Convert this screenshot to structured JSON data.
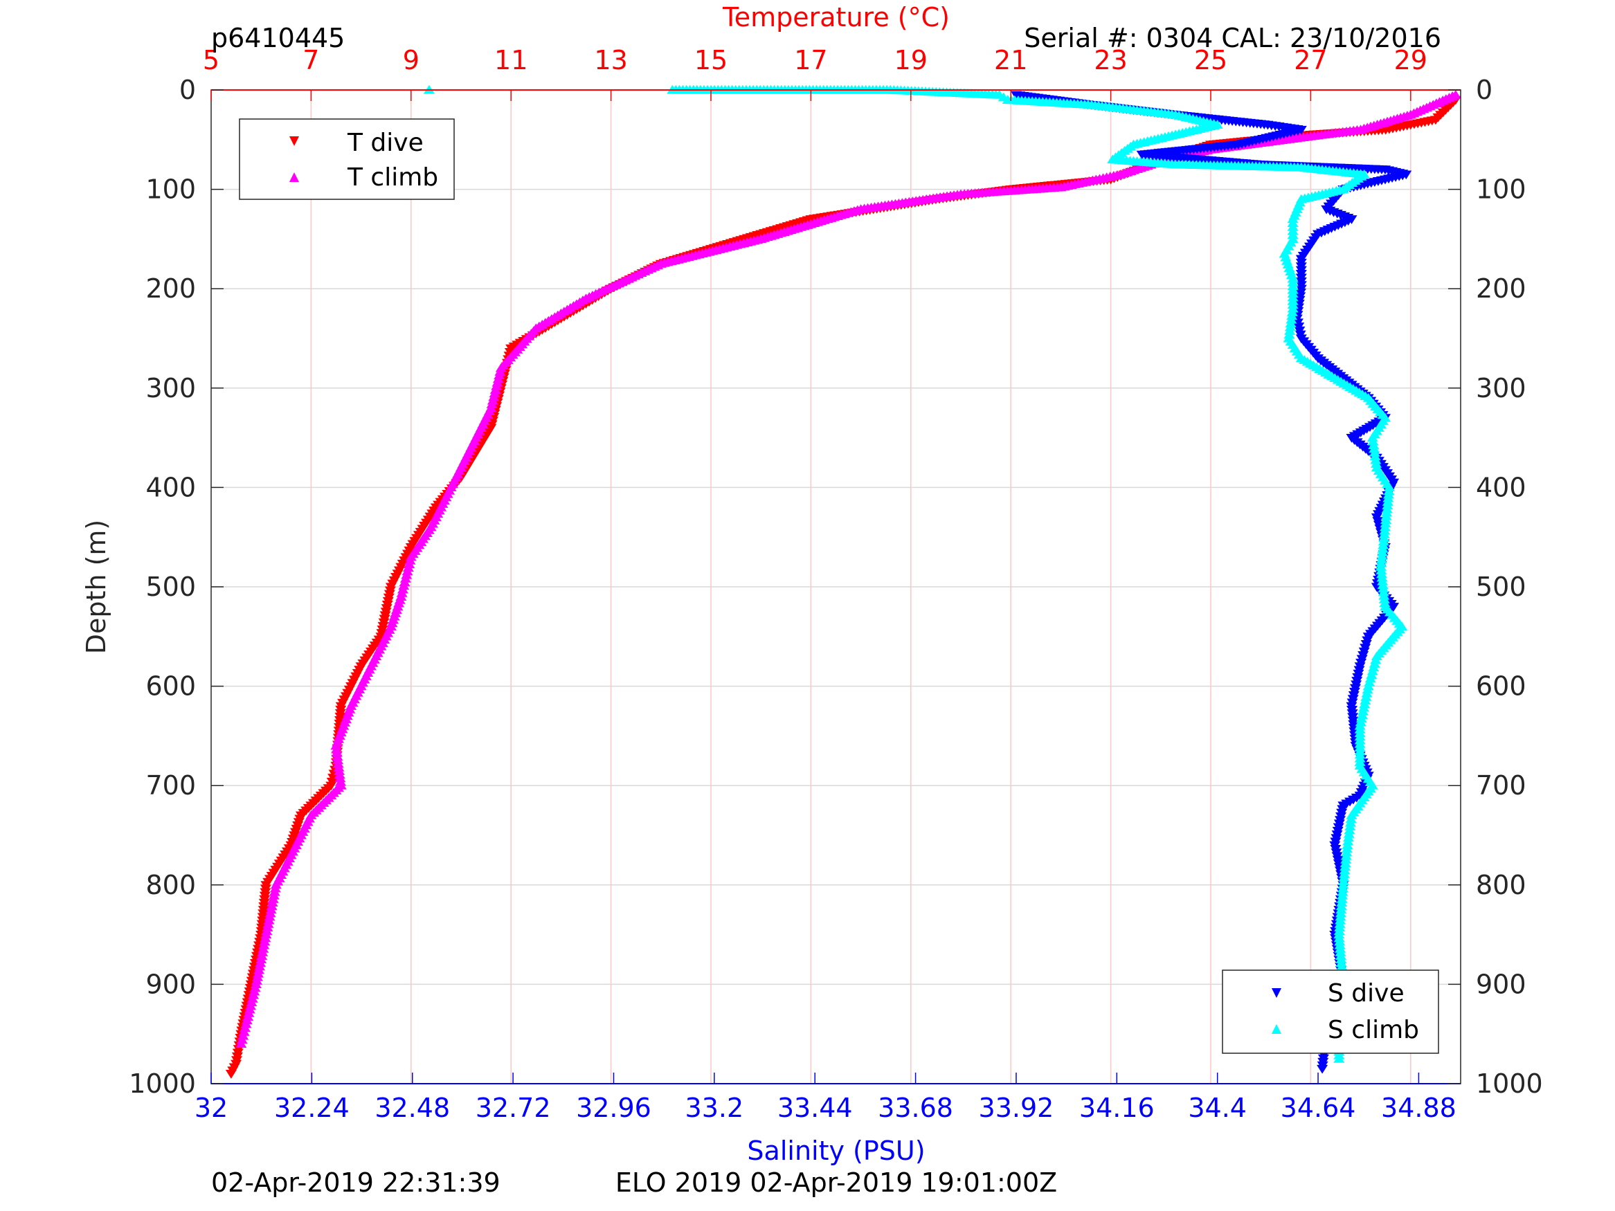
{
  "header": {
    "profile_id": "p6410445",
    "serial_info": "Serial #: 0304  CAL: 23/10/2016"
  },
  "footer": {
    "left_timestamp": "02-Apr-2019 22:31:39",
    "center_info": "ELO 2019 02-Apr-2019 19:01:00Z"
  },
  "colors": {
    "temperature_axis": "#ff0000",
    "salinity_axis": "#0000ff",
    "t_dive": "#ff0000",
    "t_climb": "#ff00ff",
    "s_dive": "#0000ff",
    "s_climb": "#00ffff",
    "grid": "#d9d9d9",
    "temp_grid": "#ffc6c6"
  },
  "chart_data": {
    "type": "scatter",
    "ylabel": "Depth (m)",
    "top_xlabel": "Temperature (°C)",
    "bottom_xlabel": "Salinity (PSU)",
    "ylim": [
      0,
      1000
    ],
    "y_reversed": true,
    "y_ticks": [
      "0",
      "100",
      "200",
      "300",
      "400",
      "500",
      "600",
      "700",
      "800",
      "900",
      "1000"
    ],
    "temperature_axis": {
      "lim": [
        5,
        30
      ],
      "ticks": [
        "5",
        "7",
        "9",
        "11",
        "13",
        "15",
        "17",
        "19",
        "21",
        "23",
        "25",
        "27",
        "29"
      ]
    },
    "salinity_axis": {
      "lim": [
        32,
        34.98
      ],
      "ticks": [
        "32",
        "32.24",
        "32.48",
        "32.72",
        "32.96",
        "33.2",
        "33.44",
        "33.68",
        "33.92",
        "34.16",
        "34.4",
        "34.64",
        "34.88"
      ]
    },
    "grid": true,
    "legend_top_left": [
      "T dive",
      "T climb"
    ],
    "legend_bottom_right": [
      "S dive",
      "S climb"
    ],
    "series": [
      {
        "name": "T dive",
        "axis": "temperature",
        "marker": "triangle-down",
        "points": [
          [
            29.9,
            10
          ],
          [
            29.5,
            30
          ],
          [
            28.5,
            40
          ],
          [
            27,
            45
          ],
          [
            25,
            55
          ],
          [
            23.8,
            75
          ],
          [
            23,
            90
          ],
          [
            21,
            100
          ],
          [
            19.5,
            110
          ],
          [
            17,
            130
          ],
          [
            15,
            160
          ],
          [
            14,
            175
          ],
          [
            13,
            200
          ],
          [
            12,
            230
          ],
          [
            11,
            260
          ],
          [
            10.8,
            300
          ],
          [
            10.6,
            340
          ],
          [
            10,
            390
          ],
          [
            9.5,
            420
          ],
          [
            9,
            460
          ],
          [
            8.6,
            500
          ],
          [
            8.4,
            550
          ],
          [
            8,
            580
          ],
          [
            7.6,
            620
          ],
          [
            7.5,
            680
          ],
          [
            7.4,
            700
          ],
          [
            6.8,
            730
          ],
          [
            6.6,
            760
          ],
          [
            6.1,
            800
          ],
          [
            6,
            850
          ],
          [
            5.8,
            900
          ],
          [
            5.6,
            950
          ],
          [
            5.5,
            980
          ],
          [
            5.4,
            990
          ]
        ]
      },
      {
        "name": "T climb",
        "axis": "temperature",
        "marker": "triangle-up",
        "points": [
          [
            29.9,
            5
          ],
          [
            29,
            25
          ],
          [
            28,
            40
          ],
          [
            26.5,
            50
          ],
          [
            25,
            60
          ],
          [
            24,
            72
          ],
          [
            23.2,
            85
          ],
          [
            22,
            98
          ],
          [
            20,
            105
          ],
          [
            18,
            120
          ],
          [
            16,
            150
          ],
          [
            14,
            175
          ],
          [
            12.5,
            210
          ],
          [
            11.5,
            240
          ],
          [
            10.8,
            280
          ],
          [
            10.6,
            320
          ],
          [
            10.2,
            360
          ],
          [
            9.8,
            400
          ],
          [
            9.4,
            440
          ],
          [
            9,
            470
          ],
          [
            8.8,
            510
          ],
          [
            8.6,
            540
          ],
          [
            8.2,
            580
          ],
          [
            7.8,
            620
          ],
          [
            7.5,
            660
          ],
          [
            7.6,
            700
          ],
          [
            7,
            730
          ],
          [
            6.6,
            770
          ],
          [
            6.3,
            800
          ],
          [
            6.1,
            850
          ],
          [
            5.9,
            900
          ],
          [
            5.7,
            940
          ],
          [
            5.6,
            960
          ]
        ]
      },
      {
        "name": "S dive",
        "axis": "salinity",
        "marker": "triangle-down",
        "points": [
          [
            33.92,
            5
          ],
          [
            34.1,
            15
          ],
          [
            34.3,
            25
          ],
          [
            34.52,
            35
          ],
          [
            34.6,
            40
          ],
          [
            34.45,
            55
          ],
          [
            34.22,
            65
          ],
          [
            34.5,
            75
          ],
          [
            34.8,
            80
          ],
          [
            34.85,
            85
          ],
          [
            34.7,
            100
          ],
          [
            34.66,
            120
          ],
          [
            34.72,
            130
          ],
          [
            34.64,
            145
          ],
          [
            34.6,
            170
          ],
          [
            34.6,
            200
          ],
          [
            34.59,
            230
          ],
          [
            34.6,
            250
          ],
          [
            34.64,
            270
          ],
          [
            34.7,
            290
          ],
          [
            34.76,
            310
          ],
          [
            34.8,
            330
          ],
          [
            34.72,
            350
          ],
          [
            34.78,
            370
          ],
          [
            34.82,
            395
          ],
          [
            34.78,
            430
          ],
          [
            34.8,
            460
          ],
          [
            34.78,
            500
          ],
          [
            34.82,
            520
          ],
          [
            34.76,
            550
          ],
          [
            34.74,
            580
          ],
          [
            34.72,
            620
          ],
          [
            34.73,
            660
          ],
          [
            34.76,
            690
          ],
          [
            34.74,
            710
          ],
          [
            34.7,
            720
          ],
          [
            34.68,
            760
          ],
          [
            34.7,
            800
          ],
          [
            34.68,
            850
          ],
          [
            34.7,
            900
          ],
          [
            34.66,
            950
          ],
          [
            34.65,
            985
          ]
        ]
      },
      {
        "name": "S climb",
        "axis": "salinity",
        "marker": "triangle-up",
        "points": [
          [
            32.52,
            0
          ],
          [
            33.1,
            0
          ],
          [
            33.62,
            0
          ],
          [
            33.88,
            5
          ],
          [
            33.9,
            10
          ],
          [
            34.1,
            15
          ],
          [
            34.3,
            25
          ],
          [
            34.4,
            35
          ],
          [
            34.2,
            55
          ],
          [
            34.15,
            70
          ],
          [
            34.3,
            75
          ],
          [
            34.6,
            78
          ],
          [
            34.75,
            85
          ],
          [
            34.7,
            100
          ],
          [
            34.6,
            110
          ],
          [
            34.58,
            130
          ],
          [
            34.58,
            150
          ],
          [
            34.56,
            165
          ],
          [
            34.58,
            190
          ],
          [
            34.58,
            220
          ],
          [
            34.57,
            250
          ],
          [
            34.6,
            270
          ],
          [
            34.68,
            290
          ],
          [
            34.76,
            310
          ],
          [
            34.8,
            330
          ],
          [
            34.77,
            350
          ],
          [
            34.78,
            380
          ],
          [
            34.81,
            400
          ],
          [
            34.8,
            440
          ],
          [
            34.79,
            480
          ],
          [
            34.8,
            520
          ],
          [
            34.84,
            540
          ],
          [
            34.78,
            570
          ],
          [
            34.76,
            600
          ],
          [
            34.74,
            640
          ],
          [
            34.74,
            680
          ],
          [
            34.77,
            700
          ],
          [
            34.72,
            730
          ],
          [
            34.71,
            760
          ],
          [
            34.7,
            800
          ],
          [
            34.69,
            850
          ],
          [
            34.7,
            900
          ],
          [
            34.69,
            950
          ],
          [
            34.69,
            975
          ]
        ]
      }
    ]
  }
}
